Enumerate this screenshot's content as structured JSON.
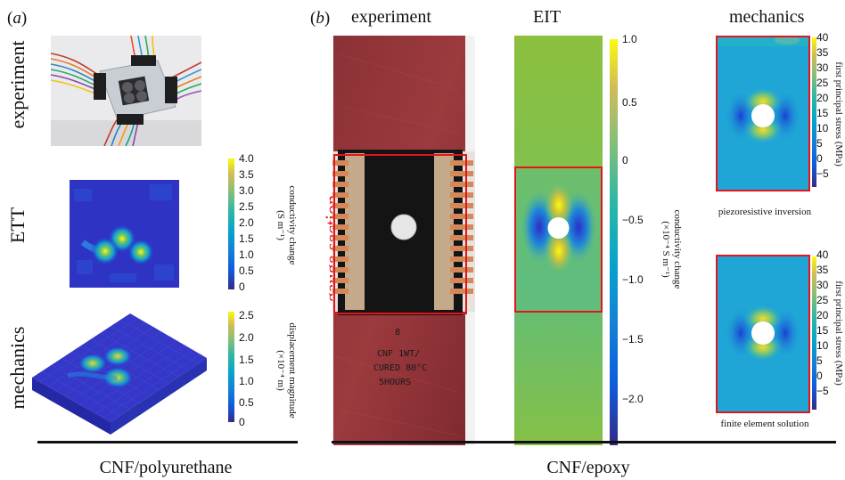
{
  "panel_a": {
    "label_letter": "a",
    "rows": [
      {
        "label": "experiment"
      },
      {
        "label": "ETT"
      },
      {
        "label": "mechanics"
      }
    ],
    "ett_colorbar": {
      "ticks": [
        "4.0",
        "3.5",
        "3.0",
        "2.5",
        "2.0",
        "1.5",
        "1.0",
        "0.5",
        "0"
      ],
      "title_line1": "conductivity change",
      "title_line2": "(S m⁻¹)"
    },
    "mech_colorbar": {
      "ticks": [
        "2.5",
        "2.0",
        "1.5",
        "1.0",
        "0.5",
        "0"
      ],
      "title_line1": "displacement magnitude",
      "title_line2": "(×10⁻⁴ m)"
    },
    "bottom_label": "CNF/polyurethane"
  },
  "panel_b": {
    "label_letter": "b",
    "col_experiment": "experiment",
    "col_eit": "EIT",
    "col_mechanics": "mechanics",
    "gauge_label": "gauge section",
    "specimen_text": [
      "8",
      "CNF 1WT/",
      "CURED 80°C",
      "5HOURS"
    ],
    "eit_colorbar": {
      "ticks": [
        "1.0",
        "0.5",
        "0",
        "−0.5",
        "−1.0",
        "−1.5",
        "−2.0"
      ],
      "title_line1": "conductivity change",
      "title_line2": "(×10⁻⁴ S m⁻¹)"
    },
    "stress_colorbar": {
      "ticks": [
        "40",
        "35",
        "30",
        "25",
        "20",
        "15",
        "10",
        "5",
        "0",
        "−5"
      ],
      "title": "first principal stress (MPa)"
    },
    "caption_top": "piezoresistive inversion",
    "caption_bottom": "finite element solution",
    "bottom_label": "CNF/epoxy"
  },
  "colors": {
    "highlight_red": "#e0161c",
    "viridis_low": "#3b0f70",
    "parula_low": "#352a87",
    "parula_mid": "#21b6a6",
    "parula_high": "#f9fb0e"
  }
}
